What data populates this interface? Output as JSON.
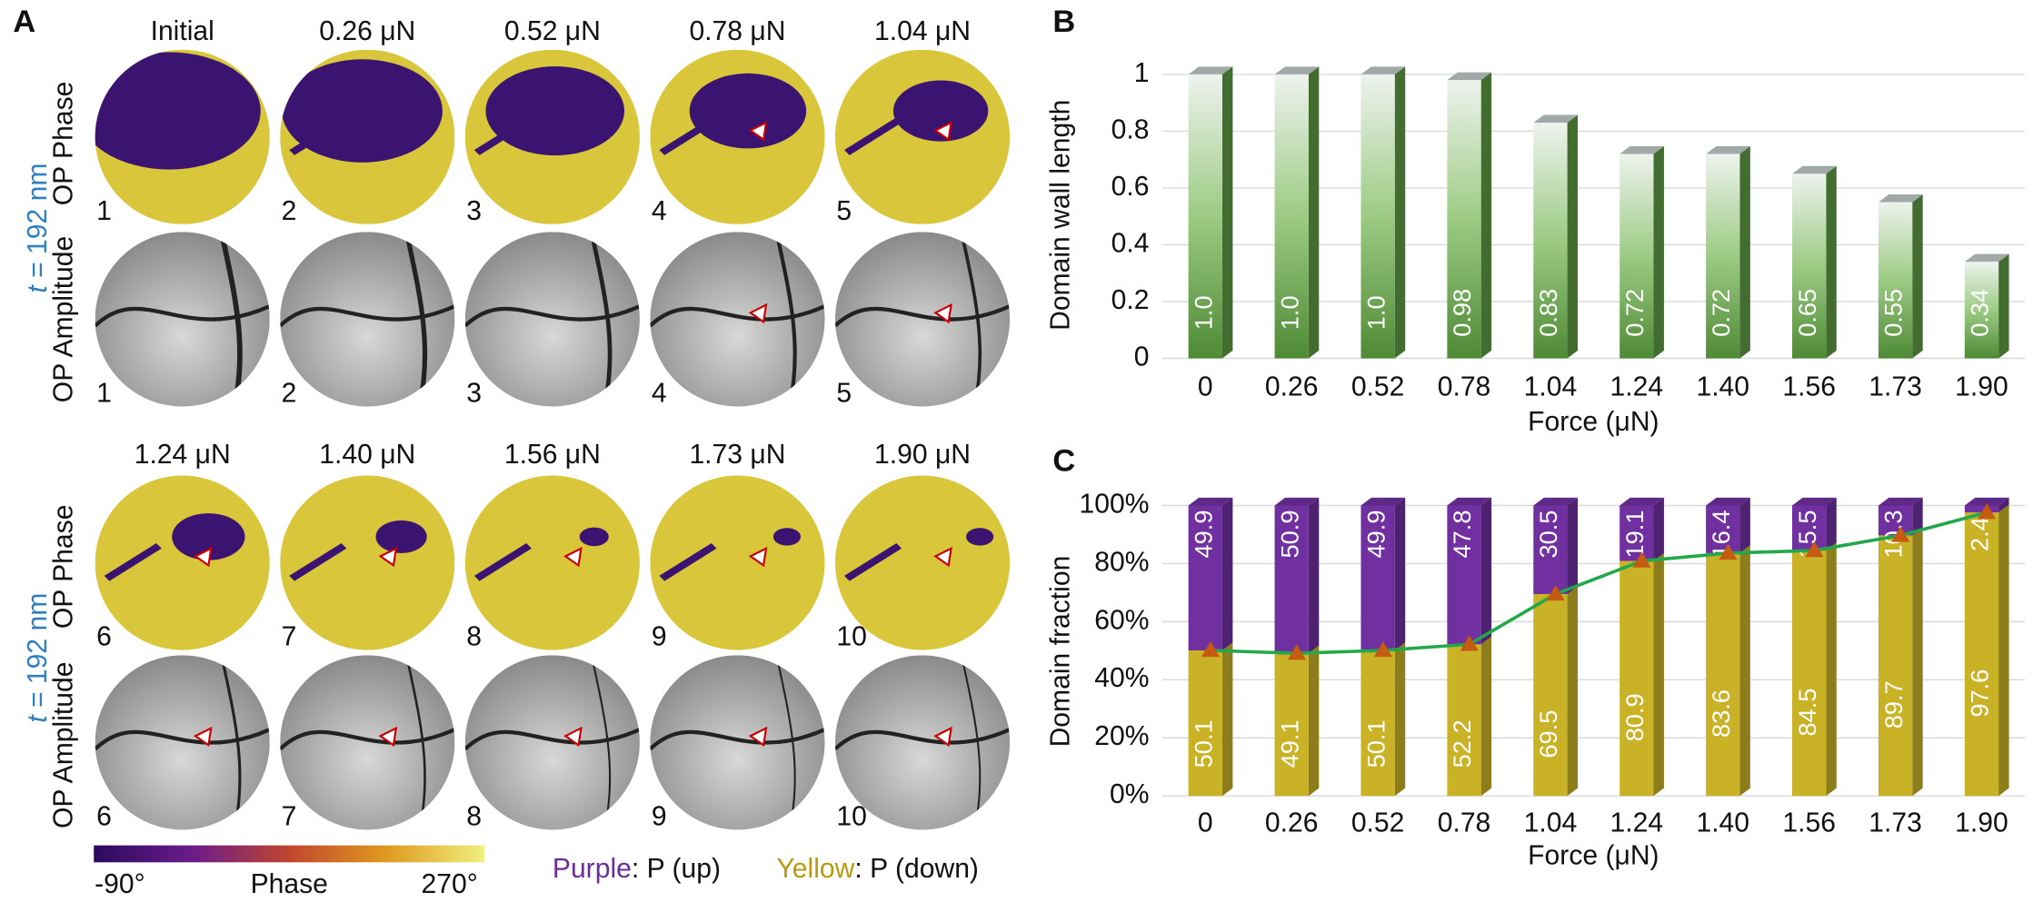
{
  "panel_a": {
    "letter": "A",
    "columns": [
      "Initial",
      "0.26 μN",
      "0.52 μN",
      "0.78 μN",
      "1.04 μN",
      "1.24 μN",
      "1.40 μN",
      "1.56 μN",
      "1.73 μN",
      "1.90 μN"
    ],
    "image_numbers": [
      "1",
      "2",
      "3",
      "4",
      "5",
      "6",
      "7",
      "8",
      "9",
      "10"
    ],
    "row_labels": [
      "OP Phase",
      "OP Amplitude"
    ],
    "thickness": {
      "symbol": "t",
      "rest": " = 192 nm"
    },
    "colorbar": {
      "min_label": "-90°",
      "title": "Phase",
      "max_label": "270°"
    },
    "legend": [
      {
        "color_word": "Purple",
        "text": ": P (up)"
      },
      {
        "color_word": "Yellow",
        "text": ": P (down)"
      }
    ]
  },
  "chart_data": [
    {
      "type": "bar",
      "letter": "B",
      "xlabel": "Force (μN)",
      "ylabel": "Domain wall length",
      "categories": [
        "0",
        "0.26",
        "0.52",
        "0.78",
        "1.04",
        "1.24",
        "1.40",
        "1.56",
        "1.73",
        "1.90"
      ],
      "values": [
        1.0,
        1.0,
        1.0,
        0.98,
        0.83,
        0.72,
        0.72,
        0.65,
        0.55,
        0.34
      ],
      "value_labels": [
        "1.0",
        "1.0",
        "1.0",
        "0.98",
        "0.83",
        "0.72",
        "0.72",
        "0.65",
        "0.55",
        "0.34"
      ],
      "color": "#5f9a45",
      "ylim": [
        0,
        1
      ],
      "yticks": [
        0,
        0.2,
        0.4,
        0.6,
        0.8,
        1
      ],
      "grid": true
    },
    {
      "type": "stacked-bar",
      "letter": "C",
      "xlabel": "Force (μN)",
      "ylabel": "Domain fraction",
      "categories": [
        "0",
        "0.26",
        "0.52",
        "0.78",
        "1.04",
        "1.24",
        "1.40",
        "1.56",
        "1.73",
        "1.90"
      ],
      "series": [
        {
          "color": "#c9b226",
          "values": [
            50.1,
            49.1,
            50.1,
            52.2,
            69.5,
            80.9,
            83.6,
            84.5,
            89.7,
            97.6
          ]
        },
        {
          "color": "#7030a0",
          "values": [
            49.9,
            50.9,
            49.9,
            47.8,
            30.5,
            19.1,
            16.4,
            15.5,
            10.3,
            2.4
          ]
        }
      ],
      "line_color": "#22a84a",
      "marker_color": "#c55a11",
      "ylim": [
        0,
        100
      ],
      "yticks": [
        {
          "value": 0,
          "label": "0%"
        },
        {
          "value": 20,
          "label": "20%"
        },
        {
          "value": 40,
          "label": "40%"
        },
        {
          "value": 60,
          "label": "60%"
        },
        {
          "value": 80,
          "label": "80%"
        },
        {
          "value": 100,
          "label": "100%"
        }
      ],
      "grid": true
    }
  ]
}
